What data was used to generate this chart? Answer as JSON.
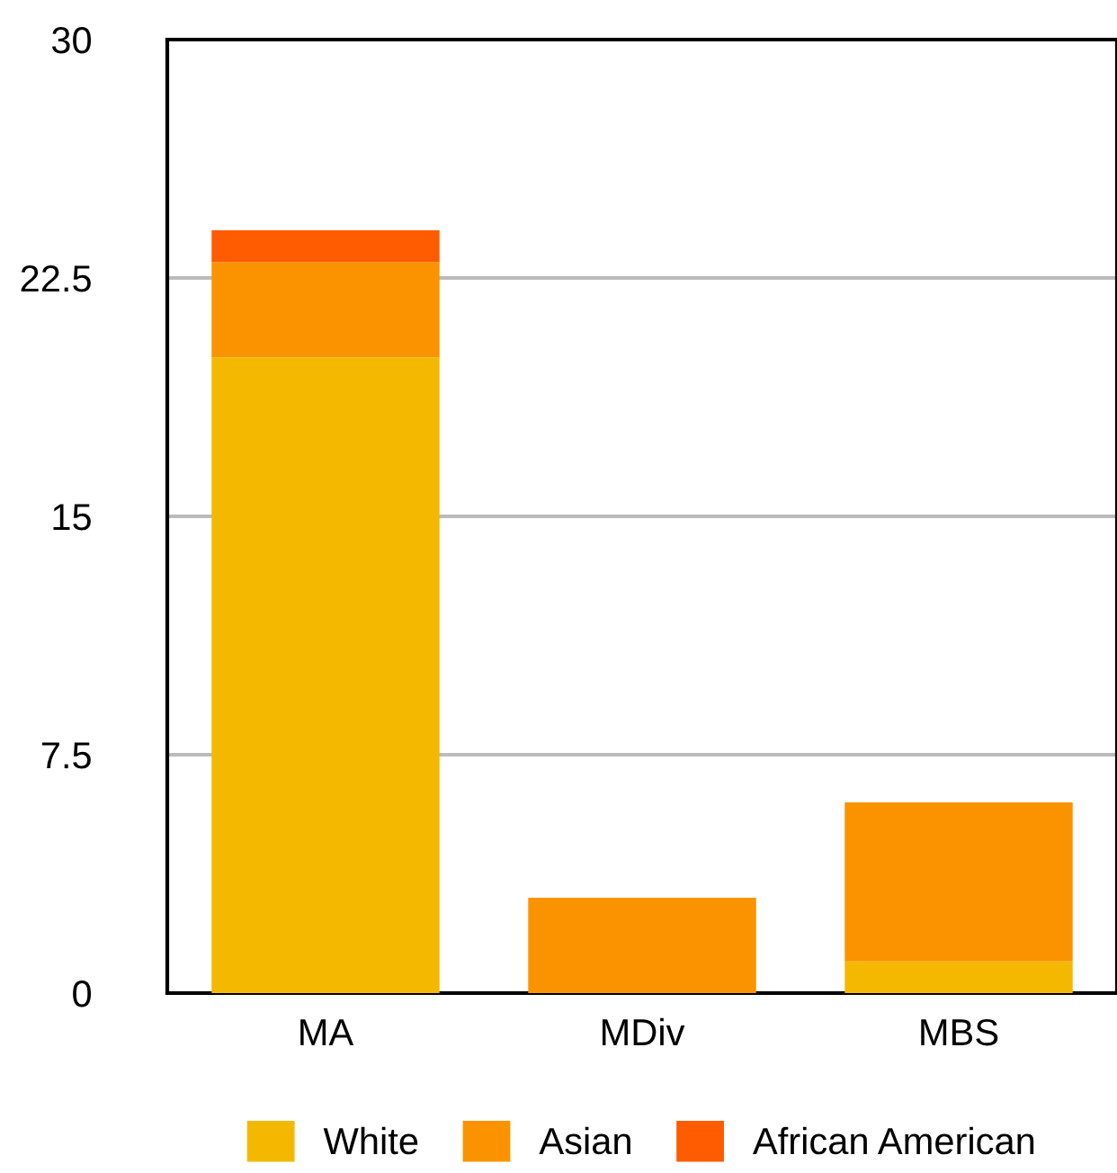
{
  "chart_data": {
    "type": "bar",
    "stacked": true,
    "categories": [
      "MA",
      "MDiv",
      "MBS"
    ],
    "series": [
      {
        "name": "White",
        "color": "#f5b800",
        "values": [
          20,
          0,
          1
        ]
      },
      {
        "name": "Asian",
        "color": "#fb9300",
        "values": [
          3,
          3,
          5
        ]
      },
      {
        "name": "African American",
        "color": "#ff5b00",
        "values": [
          1,
          0,
          0
        ]
      }
    ],
    "ylim": [
      0,
      30
    ],
    "yticks": [
      0,
      7.5,
      15,
      22.5,
      30
    ],
    "grid": "y",
    "legend": "bottom"
  }
}
